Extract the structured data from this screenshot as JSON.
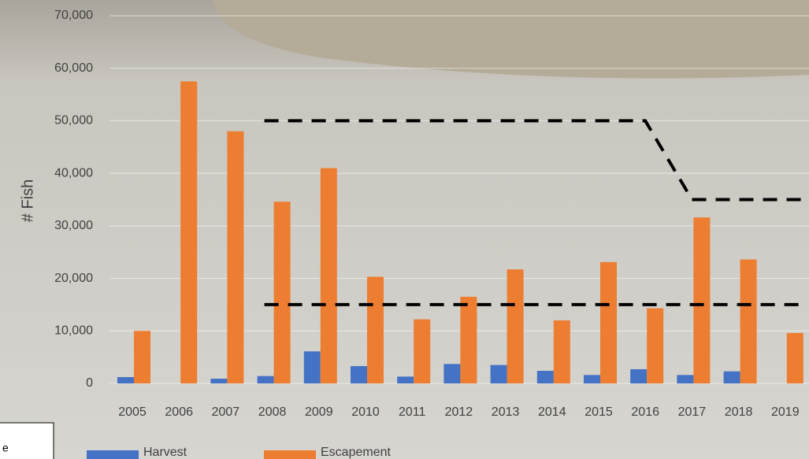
{
  "chart_data": {
    "type": "bar",
    "y_label": "# Fish",
    "note": "e",
    "categories": [
      "2005",
      "2006",
      "2007",
      "2008",
      "2009",
      "2010",
      "2011",
      "2012",
      "2013",
      "2014",
      "2015",
      "2016",
      "2017",
      "2018",
      "2019"
    ],
    "series": [
      {
        "name": "Harvest",
        "color": "#4472c4",
        "values": [
          1200,
          0,
          900,
          1400,
          6100,
          3300,
          1300,
          3700,
          3500,
          2400,
          1600,
          2700,
          1600,
          2300,
          0
        ]
      },
      {
        "name": "Escapement",
        "color": "#ed7d31",
        "values": [
          10000,
          57500,
          48000,
          34600,
          41000,
          20300,
          12200,
          16500,
          21700,
          12000,
          23100,
          14300,
          31600,
          23600,
          9600
        ]
      }
    ],
    "goal_lines": [
      {
        "color": "#000000",
        "values": [
          null,
          null,
          null,
          50000,
          50000,
          50000,
          50000,
          50000,
          50000,
          50000,
          50000,
          50000,
          35000,
          35000,
          35000
        ]
      },
      {
        "color": "#000000",
        "values": [
          null,
          null,
          null,
          15000,
          15000,
          15000,
          15000,
          15000,
          15000,
          15000,
          15000,
          15000,
          15000,
          15000,
          15000
        ]
      }
    ],
    "ylim": [
      0,
      70000
    ],
    "yticks": [
      0,
      {
        "value": 10000,
        "label": "10,000"
      },
      {
        "value": 20000,
        "label": "20,000"
      },
      {
        "value": 30000,
        "label": "30,000"
      },
      {
        "value": 40000,
        "label": "40,000"
      },
      {
        "value": 50000,
        "label": "50,000"
      },
      {
        "value": 60000,
        "label": "60,000"
      },
      {
        "value": 70000,
        "label": "70,000"
      }
    ],
    "grid": true
  }
}
